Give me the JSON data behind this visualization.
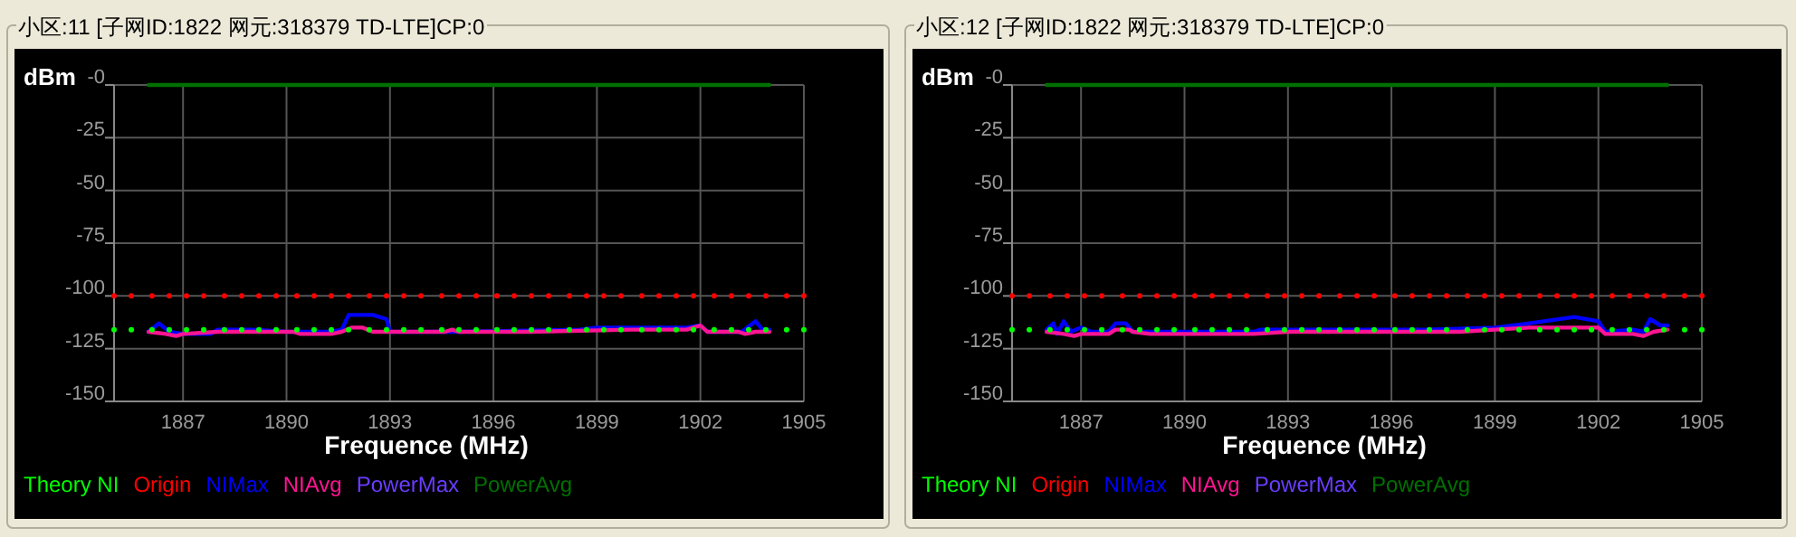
{
  "chart_data": [
    {
      "type": "line",
      "title": "小区:11 [子网ID:1822 网元:318379 TD-LTE]CP:0",
      "ylabel": "dBm",
      "xlabel": "Frequence (MHz)",
      "xlim": [
        1885,
        1905
      ],
      "ylim": [
        -150,
        0
      ],
      "xticks": [
        1887,
        1890,
        1893,
        1896,
        1899,
        1902,
        1905
      ],
      "yticks": [
        {
          "value": 0,
          "label": "-0"
        },
        -25,
        -50,
        -75,
        -100,
        -125,
        -150
      ],
      "grid": true,
      "legend": "bottom",
      "series": [
        {
          "name": "Theory NI",
          "type": "scatter",
          "marker": "circle",
          "color": "#00ff00",
          "x": [
            1885.0,
            1885.5,
            1886.1,
            1886.6,
            1887.1,
            1887.6,
            1888.2,
            1888.7,
            1889.2,
            1889.7,
            1890.3,
            1890.8,
            1891.3,
            1891.8,
            1892.4,
            1892.9,
            1893.4,
            1893.9,
            1894.5,
            1895.0,
            1895.5,
            1896.1,
            1896.6,
            1897.1,
            1897.6,
            1898.2,
            1898.7,
            1899.2,
            1899.7,
            1900.3,
            1900.8,
            1901.3,
            1901.8,
            1902.4,
            1902.9,
            1903.4,
            1903.9,
            1904.5,
            1905.0
          ],
          "values": [
            -116,
            -116,
            -116,
            -116,
            -116,
            -116,
            -116,
            -116,
            -116,
            -116,
            -116,
            -116,
            -116,
            -116,
            -116,
            -116,
            -116,
            -116,
            -116,
            -116,
            -116,
            -116,
            -116,
            -116,
            -116,
            -116,
            -116,
            -116,
            -116,
            -116,
            -116,
            -116,
            -116,
            -116,
            -116,
            -116,
            -116,
            -116,
            -116
          ]
        },
        {
          "name": "Origin",
          "type": "scatter",
          "marker": "circle",
          "color": "#ff0000",
          "x": [
            1885.0,
            1885.5,
            1886.1,
            1886.6,
            1887.1,
            1887.6,
            1888.2,
            1888.7,
            1889.2,
            1889.7,
            1890.3,
            1890.8,
            1891.3,
            1891.8,
            1892.4,
            1892.9,
            1893.4,
            1893.9,
            1894.5,
            1895.0,
            1895.5,
            1896.1,
            1896.6,
            1897.1,
            1897.6,
            1898.2,
            1898.7,
            1899.2,
            1899.7,
            1900.3,
            1900.8,
            1901.3,
            1901.8,
            1902.4,
            1902.9,
            1903.4,
            1903.9,
            1904.5,
            1905.0
          ],
          "values": [
            -100,
            -100,
            -100,
            -100,
            -100,
            -100,
            -100,
            -100,
            -100,
            -100,
            -100,
            -100,
            -100,
            -100,
            -100,
            -100,
            -100,
            -100,
            -100,
            -100,
            -100,
            -100,
            -100,
            -100,
            -100,
            -100,
            -100,
            -100,
            -100,
            -100,
            -100,
            -100,
            -100,
            -100,
            -100,
            -100,
            -100,
            -100,
            -100
          ]
        },
        {
          "name": "NIMax",
          "color": "#0000ff",
          "x": [
            1886.0,
            1886.3,
            1886.6,
            1887.0,
            1887.8,
            1888.0,
            1889.0,
            1890.0,
            1891.3,
            1891.6,
            1891.8,
            1892.5,
            1892.9,
            1893.0,
            1895.0,
            1898.5,
            1899.0,
            1901.6,
            1902.0,
            1902.2,
            1903.2,
            1903.6,
            1903.8,
            1904.0
          ],
          "values": [
            -117,
            -113,
            -117,
            -118,
            -118,
            -116,
            -116,
            -117,
            -117,
            -116,
            -109,
            -109,
            -111,
            -117,
            -117,
            -116,
            -115,
            -115,
            -114,
            -117,
            -117,
            -112,
            -116,
            -116
          ]
        },
        {
          "name": "NIAvg",
          "color": "#ff1493",
          "x": [
            1886.0,
            1886.5,
            1886.8,
            1887.0,
            1888.0,
            1890.2,
            1890.4,
            1891.3,
            1891.6,
            1891.9,
            1892.2,
            1892.5,
            1894.6,
            1894.8,
            1895.0,
            1897.0,
            1897.1,
            1900.0,
            1901.6,
            1902.0,
            1902.2,
            1903.1,
            1903.3,
            1903.6,
            1904.0
          ],
          "values": [
            -117,
            -118,
            -119,
            -118,
            -117,
            -117,
            -118,
            -118,
            -117,
            -115,
            -115,
            -117,
            -117,
            -116,
            -117,
            -117,
            -117,
            -116,
            -116,
            -114,
            -117,
            -117,
            -118,
            -117,
            -117
          ]
        },
        {
          "name": "PowerMax",
          "color": "#6a3cff"
        },
        {
          "name": "PowerAvg",
          "color": "#007000",
          "x": [
            1886.0,
            1904.0
          ],
          "values": [
            0,
            0
          ]
        }
      ]
    },
    {
      "type": "line",
      "title": "小区:12 [子网ID:1822 网元:318379 TD-LTE]CP:0",
      "ylabel": "dBm",
      "xlabel": "Frequence (MHz)",
      "xlim": [
        1885,
        1905
      ],
      "ylim": [
        -150,
        0
      ],
      "xticks": [
        1887,
        1890,
        1893,
        1896,
        1899,
        1902,
        1905
      ],
      "yticks": [
        {
          "value": 0,
          "label": "-0"
        },
        -25,
        -50,
        -75,
        -100,
        -125,
        -150
      ],
      "grid": true,
      "legend": "bottom",
      "series": [
        {
          "name": "Theory NI",
          "type": "scatter",
          "marker": "circle",
          "color": "#00ff00",
          "x": [
            1885.0,
            1885.5,
            1886.1,
            1886.6,
            1887.1,
            1887.6,
            1888.2,
            1888.7,
            1889.2,
            1889.7,
            1890.3,
            1890.8,
            1891.3,
            1891.8,
            1892.4,
            1892.9,
            1893.4,
            1893.9,
            1894.5,
            1895.0,
            1895.5,
            1896.1,
            1896.6,
            1897.1,
            1897.6,
            1898.2,
            1898.7,
            1899.2,
            1899.7,
            1900.3,
            1900.8,
            1901.3,
            1901.8,
            1902.4,
            1902.9,
            1903.4,
            1903.9,
            1904.5,
            1905.0
          ],
          "values": [
            -116,
            -116,
            -116,
            -116,
            -116,
            -116,
            -116,
            -116,
            -116,
            -116,
            -116,
            -116,
            -116,
            -116,
            -116,
            -116,
            -116,
            -116,
            -116,
            -116,
            -116,
            -116,
            -116,
            -116,
            -116,
            -116,
            -116,
            -116,
            -116,
            -116,
            -116,
            -116,
            -116,
            -116,
            -116,
            -116,
            -116,
            -116,
            -116
          ]
        },
        {
          "name": "Origin",
          "type": "scatter",
          "marker": "circle",
          "color": "#ff0000",
          "x": [
            1885.0,
            1885.5,
            1886.1,
            1886.6,
            1887.1,
            1887.6,
            1888.2,
            1888.7,
            1889.2,
            1889.7,
            1890.3,
            1890.8,
            1891.3,
            1891.8,
            1892.4,
            1892.9,
            1893.4,
            1893.9,
            1894.5,
            1895.0,
            1895.5,
            1896.1,
            1896.6,
            1897.1,
            1897.6,
            1898.2,
            1898.7,
            1899.2,
            1899.7,
            1900.3,
            1900.8,
            1901.3,
            1901.8,
            1902.4,
            1902.9,
            1903.4,
            1903.9,
            1904.5,
            1905.0
          ],
          "values": [
            -100,
            -100,
            -100,
            -100,
            -100,
            -100,
            -100,
            -100,
            -100,
            -100,
            -100,
            -100,
            -100,
            -100,
            -100,
            -100,
            -100,
            -100,
            -100,
            -100,
            -100,
            -100,
            -100,
            -100,
            -100,
            -100,
            -100,
            -100,
            -100,
            -100,
            -100,
            -100,
            -100,
            -100,
            -100,
            -100,
            -100,
            -100,
            -100
          ]
        },
        {
          "name": "NIMax",
          "color": "#0000ff",
          "x": [
            1886.0,
            1886.2,
            1886.3,
            1886.5,
            1886.7,
            1887.0,
            1887.3,
            1887.8,
            1888.0,
            1888.3,
            1888.5,
            1892.0,
            1892.2,
            1897.0,
            1899.0,
            1900.0,
            1901.3,
            1902.0,
            1902.2,
            1903.0,
            1903.3,
            1903.5,
            1903.8,
            1904.0
          ],
          "values": [
            -116,
            -113,
            -118,
            -112,
            -117,
            -115,
            -117,
            -117,
            -113,
            -113,
            -117,
            -117,
            -116,
            -116,
            -115,
            -113,
            -110,
            -112,
            -117,
            -116,
            -117,
            -111,
            -114,
            -114
          ]
        },
        {
          "name": "NIAvg",
          "color": "#ff1493",
          "x": [
            1886.0,
            1886.5,
            1886.8,
            1887.0,
            1887.8,
            1888.0,
            1888.4,
            1888.5,
            1889.0,
            1892.0,
            1893.0,
            1896.0,
            1898.0,
            1899.0,
            1900.0,
            1902.0,
            1902.2,
            1903.0,
            1903.3,
            1903.6,
            1904.0
          ],
          "values": [
            -117,
            -118,
            -119,
            -118,
            -118,
            -116,
            -116,
            -117,
            -118,
            -118,
            -117,
            -117,
            -117,
            -116,
            -115,
            -115,
            -118,
            -118,
            -119,
            -117,
            -116
          ]
        },
        {
          "name": "PowerMax",
          "color": "#6a3cff"
        },
        {
          "name": "PowerAvg",
          "color": "#007000",
          "x": [
            1886.0,
            1904.0
          ],
          "values": [
            0,
            0
          ]
        }
      ]
    }
  ]
}
